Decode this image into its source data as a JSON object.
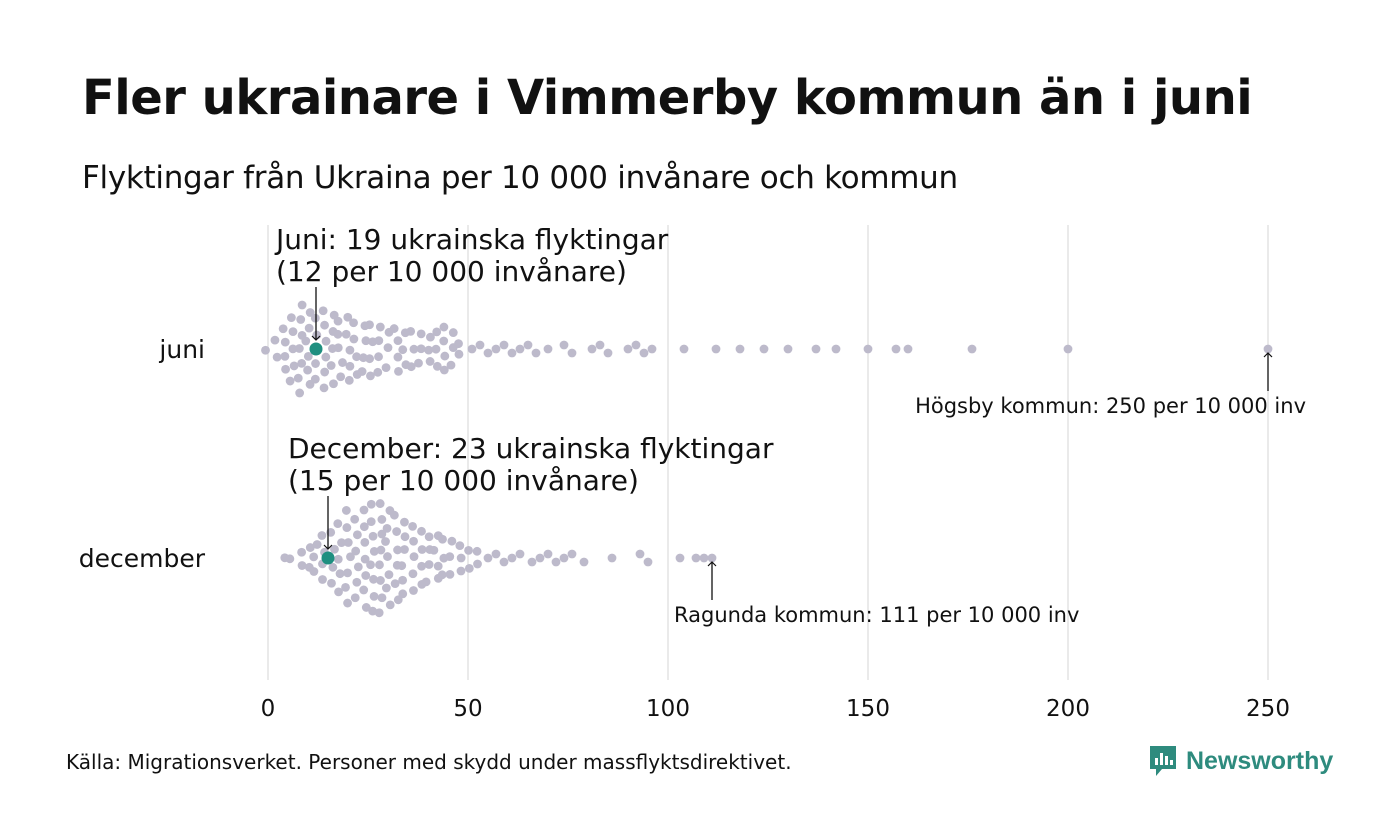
{
  "title": "Fler ukrainare i Vimmerby kommun än i juni",
  "subtitle": "Flyktingar från Ukraina per 10 000 invånare och kommun",
  "source": "Källa: Migrationsverket. Personer med skydd under massflyktsdirektivet.",
  "brand": "Newsworthy",
  "colors": {
    "dot": "#bdbacb",
    "highlight": "#1f8f80",
    "grid": "#d6d6d6",
    "brand": "#2e8b7e"
  },
  "chart_data": {
    "type": "scatter",
    "subtype": "beeswarm",
    "xlim": [
      0,
      250
    ],
    "x_ticks": [
      0,
      50,
      100,
      150,
      200,
      250
    ],
    "grid": true,
    "series": [
      {
        "name": "juni",
        "highlight": {
          "value": 12,
          "label_line1": "Juni: 19 ukrainska flyktingar",
          "label_line2": "(12 per 10 000 invånare)"
        },
        "max_annotation": {
          "value": 250,
          "label": "Högsby kommun: 250 per 10 000 inv"
        },
        "outliers": [
          51,
          53,
          55,
          57,
          59,
          61,
          63,
          65,
          67,
          70,
          74,
          76,
          81,
          83,
          85,
          90,
          92,
          94,
          96,
          104,
          112,
          118,
          124,
          130,
          137,
          142,
          150,
          157,
          160,
          176,
          200,
          250
        ]
      },
      {
        "name": "december",
        "highlight": {
          "value": 15,
          "label_line1": "December: 23 ukrainska flyktingar",
          "label_line2": "(15 per 10 000 invånare)"
        },
        "max_annotation": {
          "value": 111,
          "label": "Ragunda kommun: 111 per 10 000 inv"
        },
        "outliers": [
          55,
          57,
          59,
          61,
          63,
          66,
          68,
          70,
          72,
          74,
          76,
          79,
          86,
          93,
          95,
          103,
          107,
          109,
          111
        ]
      }
    ]
  }
}
